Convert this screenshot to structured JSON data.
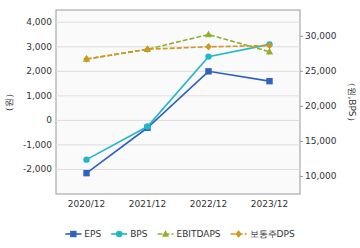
{
  "chart_data": {
    "type": "line",
    "categories": [
      "2020/12",
      "2021/12",
      "2022/12",
      "2023/12"
    ],
    "series": [
      {
        "name": "EPS",
        "color": "#3060c0",
        "marker": "square",
        "line_style": "solid",
        "values": [
          -2150,
          -300,
          2000,
          1600
        ]
      },
      {
        "name": "BPS",
        "color": "#20b8c8",
        "marker": "circle",
        "line_style": "solid",
        "values": [
          -1600,
          -250,
          2600,
          3100
        ]
      },
      {
        "name": "EBITDAPS",
        "color": "#90b030",
        "marker": "triangle",
        "line_style": "dashed",
        "values": [
          2500,
          2900,
          3500,
          2800
        ]
      },
      {
        "name": "보통주DPS",
        "color": "#d09820",
        "marker": "diamond",
        "line_style": "dashed",
        "values": [
          2500,
          2900,
          3000,
          3050
        ]
      }
    ],
    "ylabel": "（원）",
    "y2label": "（원,BPS）",
    "ylim": [
      -3000,
      4500
    ],
    "yticks": [
      {
        "value": -2000,
        "label": "-2,000"
      },
      {
        "value": -1000,
        "label": "-1,000"
      },
      0,
      {
        "value": 1000,
        "label": "1,000"
      },
      {
        "value": 2000,
        "label": "2,000"
      },
      {
        "value": 3000,
        "label": "3,000"
      },
      {
        "value": 4000,
        "label": "4,000"
      }
    ],
    "y2lim": [
      7500,
      33750
    ],
    "y2ticks": [
      {
        "value": 10000,
        "label": "10,000"
      },
      {
        "value": 15000,
        "label": "15,000"
      },
      {
        "value": 20000,
        "label": "20,000"
      },
      {
        "value": 25000,
        "label": "25,000"
      },
      {
        "value": 30000,
        "label": "30,000"
      }
    ],
    "grid": true,
    "legend": "bottom"
  }
}
